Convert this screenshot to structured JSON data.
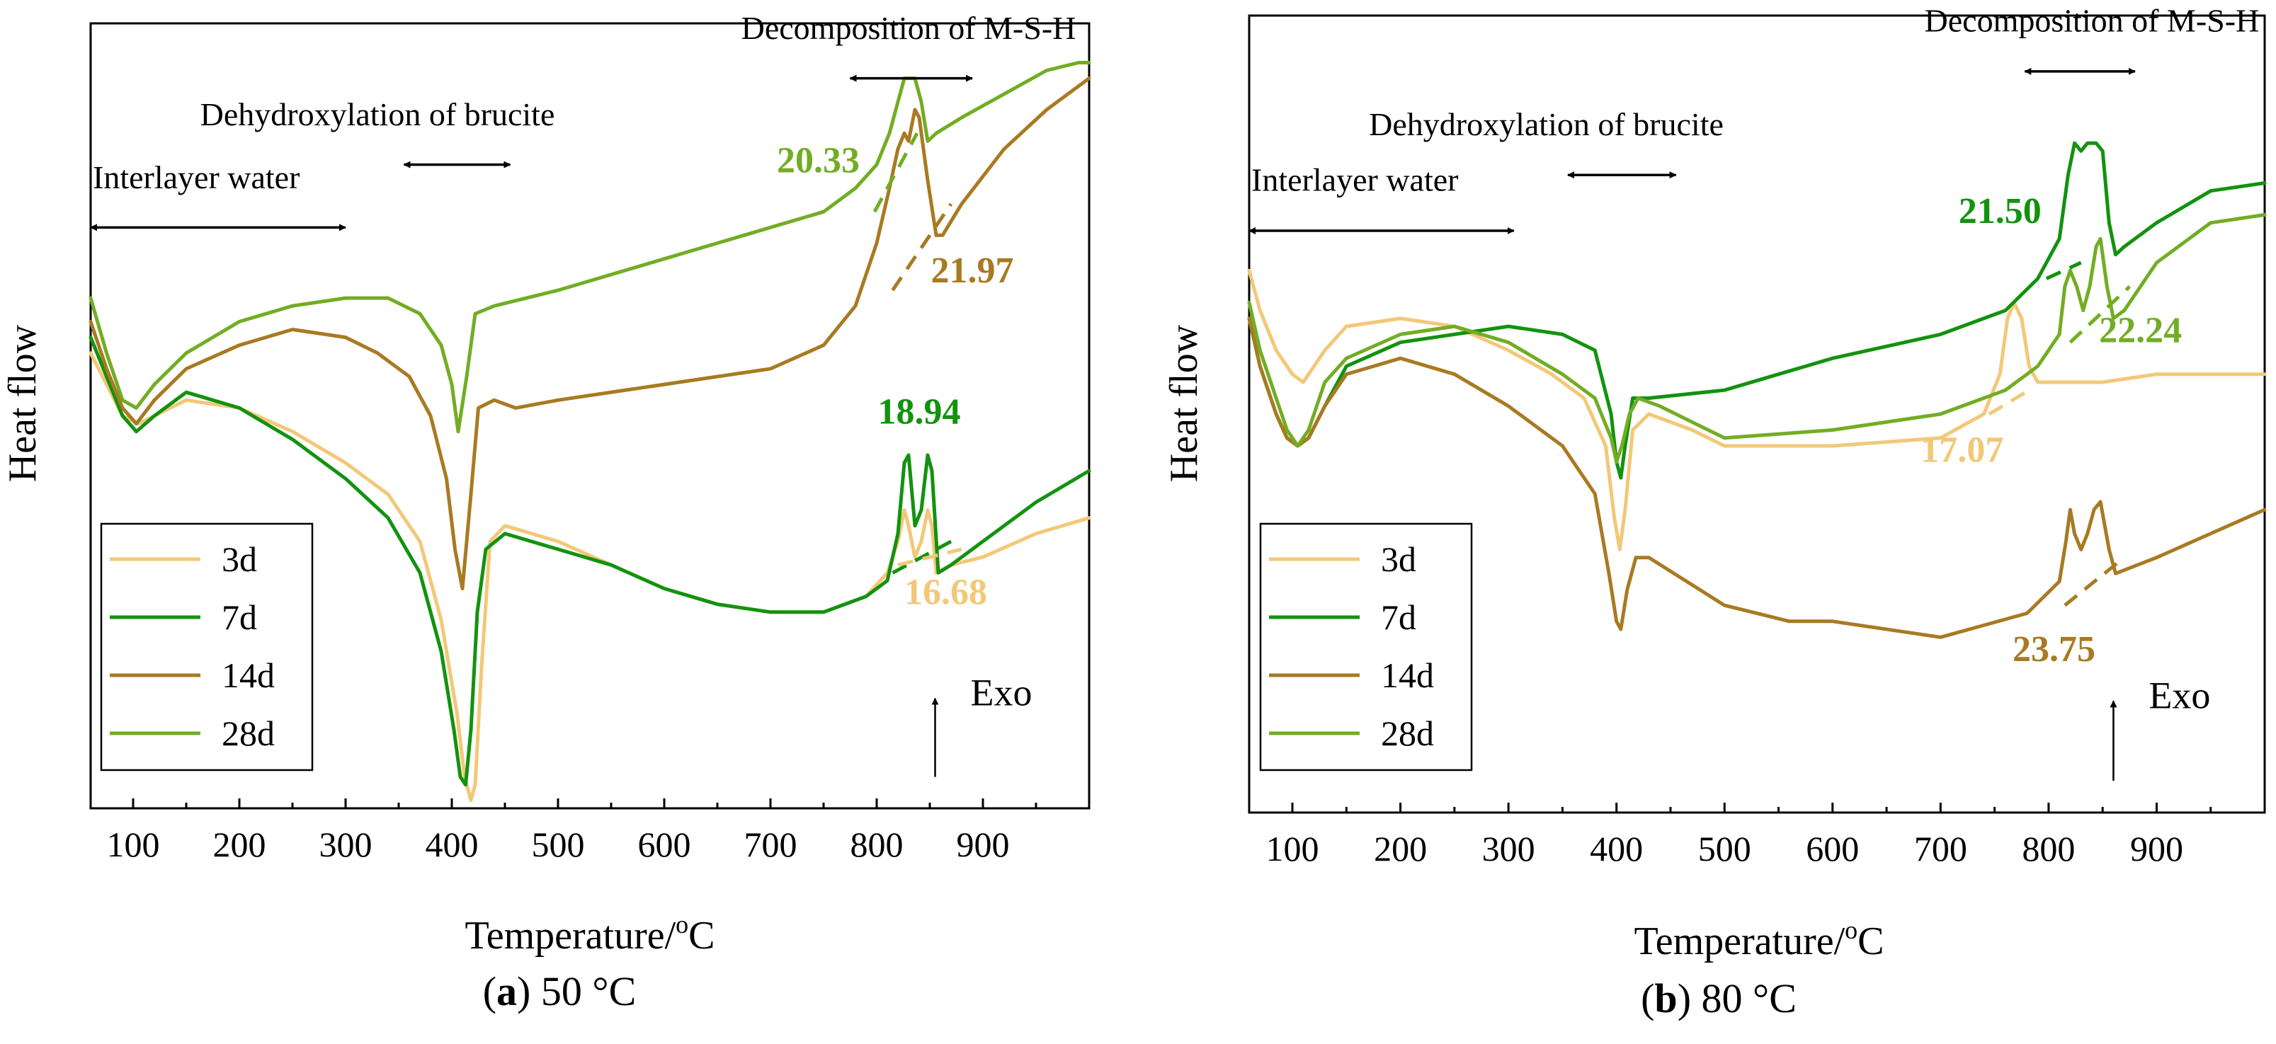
{
  "figure": {
    "panels": [
      "a",
      "b"
    ]
  },
  "series_colors": {
    "3d": "#f2c878",
    "7d": "#13920f",
    "14d": "#a87a22",
    "28d": "#72ad24"
  },
  "chart_data": [
    {
      "type": "line",
      "caption_letter": "a",
      "caption_text": " 50 °C",
      "xlabel": "Temperature/",
      "xlabel_sup": "o",
      "xlabel_unit": "C",
      "ylabel": "Heat flow",
      "xlim": [
        60,
        1000
      ],
      "ylim": [
        0,
        100
      ],
      "xticks": [
        100,
        200,
        300,
        400,
        500,
        600,
        700,
        800,
        900
      ],
      "legend": {
        "placement": "bottom-left",
        "entries": [
          "3d",
          "7d",
          "14d",
          "28d"
        ]
      },
      "annotations": [
        {
          "text": "Interlayer water",
          "x_range": [
            60,
            300
          ],
          "y": 74,
          "label_x": 62,
          "label_y": 79
        },
        {
          "text": "Dehydroxylation of brucite",
          "x_range": [
            355,
            455
          ],
          "y": 82,
          "label_x": 330,
          "label_y": 87
        },
        {
          "text": "Decomposition of M-S-H",
          "x_range": [
            775,
            890
          ],
          "y": 93,
          "label_x": 830,
          "label_y": 98
        }
      ],
      "exo_label": "Exo",
      "exo_arrow": {
        "x": 855,
        "y_from": 4,
        "y_to": 14
      },
      "series": [
        {
          "name": "3d",
          "x": [
            60,
            75,
            90,
            105,
            120,
            150,
            200,
            250,
            300,
            340,
            370,
            390,
            405,
            412,
            418,
            422,
            428,
            436,
            450,
            500,
            550,
            600,
            650,
            700,
            750,
            790,
            810,
            820,
            826,
            830,
            836,
            842,
            848,
            852,
            856,
            870,
            900,
            950,
            1000
          ],
          "y": [
            58,
            54,
            50,
            49,
            50,
            52,
            51,
            48,
            44,
            40,
            34,
            24,
            12,
            4,
            1,
            3,
            18,
            34,
            36,
            34,
            31,
            28,
            26,
            25,
            25,
            27,
            30,
            34,
            38,
            36,
            32,
            34,
            38,
            36,
            30,
            31,
            32,
            35,
            37
          ]
        },
        {
          "name": "7d",
          "x": [
            60,
            75,
            90,
            103,
            120,
            150,
            200,
            250,
            300,
            340,
            370,
            390,
            402,
            408,
            413,
            418,
            424,
            432,
            450,
            500,
            550,
            600,
            650,
            700,
            750,
            790,
            810,
            820,
            826,
            830,
            836,
            842,
            848,
            852,
            858,
            870,
            900,
            950,
            1000
          ],
          "y": [
            60,
            55,
            50,
            48,
            50,
            53,
            51,
            47,
            42,
            37,
            30,
            20,
            10,
            4,
            3,
            10,
            25,
            33,
            35,
            33,
            31,
            28,
            26,
            25,
            25,
            27,
            29,
            35,
            44,
            45,
            36,
            38,
            45,
            43,
            30,
            31,
            34,
            39,
            43
          ]
        },
        {
          "name": "14d",
          "x": [
            60,
            75,
            90,
            103,
            120,
            150,
            200,
            250,
            300,
            330,
            360,
            380,
            395,
            403,
            410,
            418,
            425,
            440,
            460,
            500,
            600,
            700,
            750,
            780,
            800,
            812,
            820,
            826,
            830,
            836,
            840,
            848,
            856,
            862,
            880,
            920,
            960,
            1000
          ],
          "y": [
            62,
            56,
            51,
            49,
            52,
            56,
            59,
            61,
            60,
            58,
            55,
            50,
            42,
            33,
            28,
            40,
            51,
            52,
            51,
            52,
            54,
            56,
            59,
            64,
            72,
            79,
            84,
            86,
            85,
            89,
            88,
            80,
            73,
            73,
            77,
            84,
            89,
            93
          ]
        },
        {
          "name": "28d",
          "x": [
            60,
            75,
            90,
            103,
            120,
            150,
            200,
            250,
            300,
            340,
            370,
            390,
            400,
            406,
            414,
            422,
            440,
            500,
            600,
            700,
            750,
            780,
            800,
            812,
            820,
            826,
            830,
            836,
            842,
            848,
            856,
            880,
            920,
            960,
            990,
            1000
          ],
          "y": [
            65,
            58,
            52,
            51,
            54,
            58,
            62,
            64,
            65,
            65,
            63,
            59,
            54,
            48,
            55,
            63,
            64,
            66,
            70,
            74,
            76,
            79,
            82,
            86,
            90,
            93,
            93,
            93,
            90,
            85,
            86,
            88,
            91,
            94,
            95,
            95
          ]
        }
      ],
      "tangent_lines": [
        {
          "series": "28d",
          "x": [
            798,
            838
          ],
          "y": [
            76,
            86
          ],
          "value_label": "20.33",
          "label_x": 745,
          "label_y": 81
        },
        {
          "series": "14d",
          "x": [
            815,
            870
          ],
          "y": [
            66,
            77
          ],
          "value_label": "21.97",
          "label_x": 890,
          "label_y": 67
        },
        {
          "series": "7d",
          "x": [
            815,
            870
          ],
          "y": [
            30,
            34
          ],
          "value_label": "18.94",
          "label_x": 840,
          "label_y": 49
        },
        {
          "series": "3d",
          "x": [
            820,
            880
          ],
          "y": [
            31,
            33
          ],
          "value_label": "16.68",
          "label_x": 865,
          "label_y": 26
        }
      ]
    },
    {
      "type": "line",
      "caption_letter": "b",
      "caption_text": " 80 °C",
      "xlabel": "Temperature/",
      "xlabel_sup": "o",
      "xlabel_unit": "C",
      "ylabel": "Heat flow",
      "xlim": [
        60,
        1000
      ],
      "ylim": [
        0,
        100
      ],
      "xticks": [
        100,
        200,
        300,
        400,
        500,
        600,
        700,
        800,
        900
      ],
      "legend": {
        "placement": "bottom-left",
        "entries": [
          "3d",
          "7d",
          "14d",
          "28d"
        ]
      },
      "annotations": [
        {
          "text": "Interlayer water",
          "x_range": [
            60,
            305
          ],
          "y": 73,
          "label_x": 62,
          "label_y": 78
        },
        {
          "text": "Dehydroxylation of brucite",
          "x_range": [
            355,
            455
          ],
          "y": 80,
          "label_x": 335,
          "label_y": 85
        },
        {
          "text": "Decomposition of M-S-H",
          "x_range": [
            778,
            880
          ],
          "y": 93,
          "label_x": 840,
          "label_y": 98
        }
      ],
      "exo_label": "Exo",
      "exo_arrow": {
        "x": 860,
        "y_from": 4,
        "y_to": 14
      },
      "series": [
        {
          "name": "3d",
          "x": [
            60,
            70,
            85,
            100,
            110,
            130,
            150,
            200,
            250,
            300,
            340,
            370,
            390,
            398,
            403,
            408,
            415,
            430,
            470,
            500,
            600,
            700,
            740,
            755,
            762,
            768,
            775,
            782,
            790,
            800,
            850,
            900,
            950,
            1000
          ],
          "y": [
            68,
            63,
            58,
            55,
            54,
            58,
            61,
            62,
            61,
            58,
            55,
            52,
            46,
            37,
            33,
            38,
            48,
            50,
            48,
            46,
            46,
            47,
            50,
            55,
            62,
            64,
            62,
            56,
            54,
            54,
            54,
            55,
            55,
            55
          ]
        },
        {
          "name": "7d",
          "x": [
            60,
            70,
            85,
            95,
            105,
            115,
            130,
            150,
            200,
            250,
            300,
            350,
            380,
            395,
            400,
            404,
            408,
            415,
            430,
            500,
            600,
            700,
            760,
            790,
            810,
            818,
            824,
            830,
            836,
            844,
            850,
            856,
            862,
            870,
            900,
            950,
            1000
          ],
          "y": [
            62,
            56,
            50,
            47,
            46,
            47,
            51,
            56,
            59,
            60,
            61,
            60,
            58,
            50,
            44,
            42,
            46,
            52,
            52,
            53,
            57,
            60,
            63,
            67,
            72,
            80,
            84,
            83,
            84,
            84,
            83,
            74,
            70,
            71,
            74,
            78,
            79
          ]
        },
        {
          "name": "14d",
          "x": [
            60,
            70,
            85,
            95,
            105,
            115,
            130,
            150,
            200,
            250,
            300,
            350,
            380,
            393,
            400,
            404,
            410,
            418,
            430,
            500,
            560,
            600,
            700,
            780,
            810,
            816,
            820,
            824,
            830,
            836,
            842,
            848,
            856,
            862,
            900,
            950,
            1000
          ],
          "y": [
            62,
            56,
            50,
            47,
            46,
            47,
            51,
            55,
            57,
            55,
            51,
            46,
            40,
            30,
            24,
            23,
            28,
            32,
            32,
            26,
            24,
            24,
            22,
            25,
            29,
            34,
            38,
            35,
            33,
            35,
            38,
            39,
            33,
            30,
            32,
            35,
            38
          ]
        },
        {
          "name": "28d",
          "x": [
            60,
            70,
            85,
            95,
            105,
            115,
            130,
            150,
            200,
            250,
            300,
            350,
            380,
            395,
            400,
            405,
            412,
            420,
            440,
            500,
            600,
            700,
            760,
            790,
            810,
            815,
            820,
            826,
            832,
            838,
            844,
            848,
            854,
            860,
            870,
            900,
            950,
            1000
          ],
          "y": [
            64,
            58,
            52,
            48,
            46,
            48,
            54,
            57,
            60,
            61,
            59,
            55,
            52,
            47,
            44,
            46,
            50,
            52,
            51,
            47,
            48,
            50,
            53,
            56,
            60,
            66,
            68,
            66,
            63,
            66,
            71,
            72,
            66,
            62,
            63,
            69,
            74,
            75
          ]
        }
      ],
      "tangent_lines": [
        {
          "series": "7d",
          "x": [
            798,
            830
          ],
          "y": [
            67,
            69
          ],
          "value_label": "21.50",
          "label_x": 755,
          "label_y": 74
        },
        {
          "series": "28d",
          "x": [
            820,
            875
          ],
          "y": [
            59,
            66
          ],
          "value_label": "22.24",
          "label_x": 885,
          "label_y": 59
        },
        {
          "series": "3d",
          "x": [
            745,
            782
          ],
          "y": [
            50,
            53
          ],
          "value_label": "17.07",
          "label_x": 720,
          "label_y": 44
        },
        {
          "series": "14d",
          "x": [
            815,
            870
          ],
          "y": [
            26,
            32
          ],
          "value_label": "23.75",
          "label_x": 805,
          "label_y": 19
        }
      ]
    }
  ]
}
